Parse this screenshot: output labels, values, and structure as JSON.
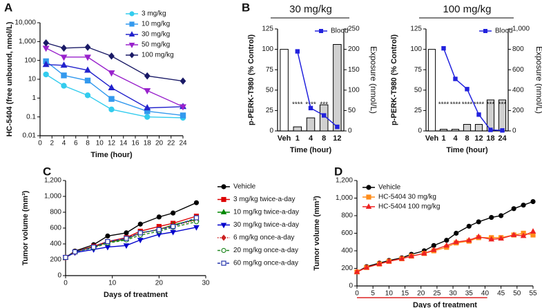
{
  "chart_data": [
    {
      "type": "line",
      "panel": "A",
      "x_label": "Time (hour)",
      "y_label": "HC-5404 (free unbound, nmol/L)",
      "log_scale": true,
      "legend": "top-right",
      "x": [
        1,
        4,
        8,
        12,
        18,
        24
      ],
      "xlim": [
        0,
        24
      ],
      "xticks": [
        0,
        2,
        4,
        6,
        8,
        10,
        12,
        14,
        16,
        18,
        20,
        22,
        24
      ],
      "ylim": [
        0.01,
        10000
      ],
      "yticks": [
        0.01,
        0.1,
        1,
        10,
        100,
        {
          "value": 1000,
          "label": "1,000"
        },
        {
          "value": 10000,
          "label": "10,000"
        }
      ],
      "series": [
        {
          "name": "3 mg/kg",
          "color": "#33ccee",
          "marker": "circle",
          "values": [
            18,
            4.5,
            1.4,
            0.25,
            0.1,
            0.09
          ]
        },
        {
          "name": "10 mg/kg",
          "color": "#3399ee",
          "marker": "square",
          "values": [
            90,
            16,
            8.5,
            0.9,
            0.2,
            0.12
          ]
        },
        {
          "name": "30 mg/kg",
          "color": "#2222cc",
          "marker": "triangle",
          "values": [
            60,
            55,
            30,
            3.5,
            0.3,
            0.35
          ]
        },
        {
          "name": "50 mg/kg",
          "color": "#9922cc",
          "marker": "triangle-down",
          "values": [
            450,
            150,
            150,
            22,
            2.5,
            0.35
          ]
        },
        {
          "name": "100 mg/kg",
          "color": "#1a1a66",
          "marker": "diamond",
          "values": [
            850,
            450,
            500,
            170,
            15,
            8
          ]
        }
      ]
    },
    {
      "type": "bar",
      "panel": "B",
      "title": "30 mg/kg",
      "x_label": "Time (hour)",
      "y_label": "p-PERK-T980 (% Control)",
      "y2_label": "Exposure (nmol/L)",
      "legend": "top-right",
      "categories": [
        "Veh",
        "1",
        "4",
        "8",
        "12"
      ],
      "values": [
        100,
        5,
        16,
        32,
        106
      ],
      "colors": [
        "#ffffff",
        "#d0d0d0",
        "#d0d0d0",
        "#d0d0d0",
        "#d0d0d0"
      ],
      "annotations": [
        null,
        "****",
        "****",
        "***",
        null
      ],
      "ylim": [
        0,
        125
      ],
      "yticks": [
        0,
        25,
        50,
        75,
        100,
        125
      ],
      "y2lim": [
        0,
        250
      ],
      "y2ticks": [
        0,
        50,
        100,
        150,
        200,
        250
      ],
      "series": [
        {
          "name": "Blood",
          "color": "#2222dd",
          "axis": "y2",
          "marker": "square",
          "values": [
            null,
            195,
            56,
            38,
            10
          ]
        }
      ]
    },
    {
      "type": "bar",
      "title": "100 mg/kg",
      "x_label": "Time (hour)",
      "y_label": "p-PERK-T980 (% Control)",
      "y2_label": "Exposure (nmol/L)",
      "legend": "top-right",
      "categories": [
        "Veh",
        "1",
        "4",
        "8",
        "12",
        "18",
        "24"
      ],
      "values": [
        100,
        2,
        2,
        8,
        8,
        38,
        38
      ],
      "colors": [
        "#ffffff",
        "#d0d0d0",
        "#d0d0d0",
        "#d0d0d0",
        "#d0d0d0",
        "#d0d0d0",
        "#d0d0d0"
      ],
      "annotations": [
        null,
        "****",
        "****",
        "****",
        "****",
        "***",
        "***"
      ],
      "ylim": [
        0,
        125
      ],
      "yticks": [
        0,
        25,
        50,
        75,
        100,
        125
      ],
      "y2lim": [
        0,
        1000
      ],
      "y2ticks": [
        0,
        200,
        400,
        600,
        800,
        {
          "value": 1000,
          "label": "1,000"
        }
      ],
      "series": [
        {
          "name": "Blood",
          "color": "#2222dd",
          "axis": "y2",
          "marker": "square",
          "values": [
            null,
            810,
            510,
            410,
            160,
            10,
            5
          ]
        }
      ]
    },
    {
      "type": "line",
      "panel": "C",
      "x_label": "Days of treatment",
      "y_label": "Tumor volume (mm³)",
      "log_scale": false,
      "legend": "right",
      "x": [
        0,
        2,
        6,
        9,
        13,
        16,
        20,
        23,
        28
      ],
      "xlim": [
        0,
        30
      ],
      "xticks": [
        0,
        10,
        20,
        30
      ],
      "ylim": [
        0,
        1200
      ],
      "yticks": [
        0,
        200,
        400,
        600,
        800,
        {
          "value": 1000,
          "label": "1,000"
        },
        {
          "value": 1200,
          "label": "1,200"
        }
      ],
      "series": [
        {
          "name": "Vehicle",
          "color": "#000000",
          "marker": "circle",
          "dash": "solid",
          "values": [
            230,
            310,
            390,
            500,
            540,
            650,
            740,
            790,
            920
          ]
        },
        {
          "name": "3 mg/kg twice-a-day",
          "color": "#dd0000",
          "marker": "square",
          "dash": "solid",
          "values": [
            230,
            300,
            370,
            430,
            480,
            560,
            620,
            660,
            750
          ]
        },
        {
          "name": "10 mg/kg twice-a-day",
          "color": "#008800",
          "marker": "triangle",
          "dash": "solid",
          "values": [
            230,
            300,
            360,
            420,
            460,
            540,
            580,
            640,
            710
          ]
        },
        {
          "name": "30 mg/kg twice-a-day",
          "color": "#0000cc",
          "marker": "triangle-down",
          "dash": "solid",
          "values": [
            230,
            290,
            330,
            360,
            380,
            450,
            520,
            550,
            610
          ]
        },
        {
          "name": "6 mg/kg once-a-day",
          "color": "#cc2222",
          "marker": "diamond",
          "dash": "dotted",
          "values": [
            230,
            300,
            360,
            420,
            470,
            530,
            590,
            630,
            700
          ]
        },
        {
          "name": "20 mg/kg once-a-day",
          "color": "#228822",
          "marker": "circle",
          "open": true,
          "dash": "dashed",
          "values": [
            230,
            300,
            350,
            410,
            450,
            510,
            560,
            610,
            680
          ]
        },
        {
          "name": "60 mg/kg once-a-day",
          "color": "#2233aa",
          "marker": "square",
          "open": true,
          "dash": "dashed",
          "values": [
            230,
            300,
            360,
            430,
            470,
            540,
            580,
            620,
            730
          ]
        }
      ]
    },
    {
      "type": "line",
      "panel": "D",
      "x_label": "Days of treatment",
      "y_label": "Tumor volume (mm³)",
      "log_scale": false,
      "legend": "top-left",
      "x": [
        0,
        3,
        7,
        10,
        14,
        17,
        21,
        24,
        28,
        31,
        35,
        38,
        42,
        45,
        49,
        52,
        55
      ],
      "xlim": [
        0,
        55
      ],
      "xticks": [
        0,
        5,
        10,
        15,
        20,
        25,
        30,
        35,
        40,
        45,
        50,
        55
      ],
      "ylim": [
        0,
        1200
      ],
      "yticks": [
        0,
        200,
        400,
        600,
        800,
        {
          "value": 1000,
          "label": "1,000"
        },
        {
          "value": 1200,
          "label": "1,200"
        }
      ],
      "series": [
        {
          "name": "Vehicle",
          "color": "#000000",
          "marker": "circle",
          "dash": "solid",
          "values": [
            160,
            220,
            260,
            290,
            320,
            360,
            400,
            460,
            520,
            600,
            680,
            730,
            780,
            800,
            880,
            920,
            960
          ]
        },
        {
          "name": "HC-5404 30 mg/kg",
          "color": "#ff8c1a",
          "marker": "square",
          "dash": "solid",
          "values": [
            160,
            210,
            250,
            280,
            310,
            340,
            370,
            400,
            440,
            490,
            510,
            550,
            550,
            550,
            580,
            600,
            580
          ]
        },
        {
          "name": "HC-5404 100 mg/kg",
          "color": "#ee2222",
          "marker": "triangle",
          "dash": "solid",
          "values": [
            160,
            210,
            250,
            280,
            310,
            340,
            370,
            410,
            460,
            500,
            520,
            560,
            530,
            540,
            580,
            570,
            620
          ]
        }
      ]
    }
  ]
}
